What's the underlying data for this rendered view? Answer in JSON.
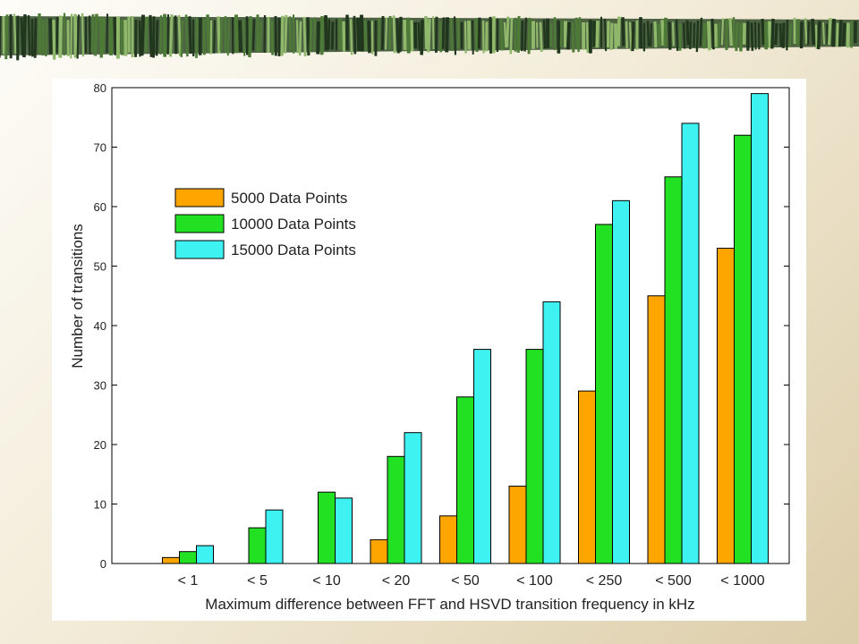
{
  "colors": {
    "series": [
      "#ffa500",
      "#22e022",
      "#3ff2f2"
    ],
    "banner_dark": "#20361d",
    "banner_mid": "#4d7a36",
    "banner_light": "#8fb86a"
  },
  "chart_data": {
    "type": "bar",
    "categories": [
      "< 1",
      "< 5",
      "< 10",
      "< 20",
      "< 50",
      "< 100",
      "< 250",
      "< 500",
      "< 1000"
    ],
    "series": [
      {
        "name": " 5000 Data Points",
        "values": [
          1,
          0,
          0,
          4,
          8,
          13,
          29,
          45,
          53
        ]
      },
      {
        "name": "10000 Data Points",
        "values": [
          2,
          6,
          12,
          18,
          28,
          36,
          57,
          65,
          72
        ]
      },
      {
        "name": "15000 Data Points",
        "values": [
          3,
          9,
          11,
          22,
          36,
          44,
          61,
          74,
          79
        ]
      }
    ],
    "xlabel": "Maximum difference between FFT and HSVD transition frequency in kHz",
    "ylabel": "Number of transitions",
    "ylim": [
      0,
      80
    ],
    "yticks": [
      "0",
      "10",
      "20",
      "30",
      "40",
      "50",
      "60",
      "70",
      "80"
    ],
    "legend_position": "upper-left",
    "grid": false
  }
}
